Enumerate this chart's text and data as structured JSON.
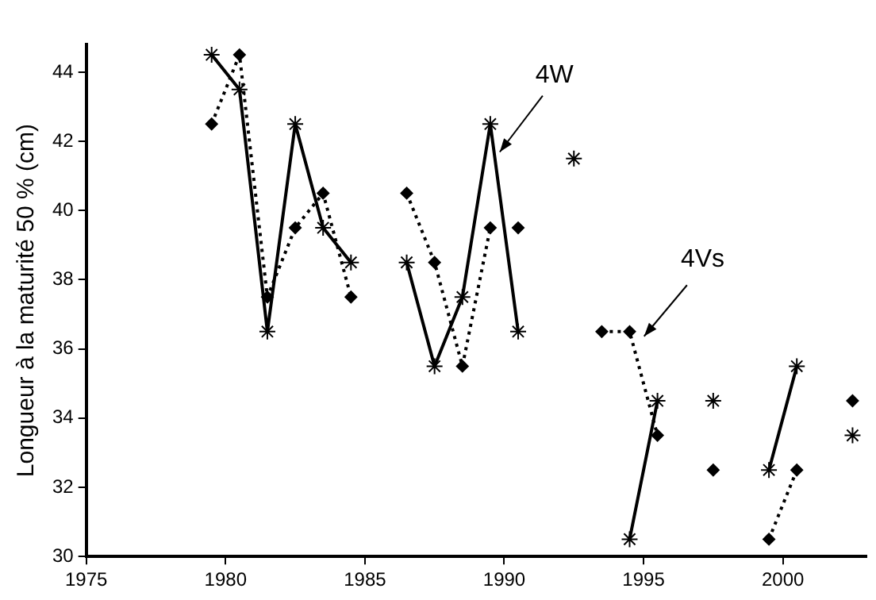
{
  "chart_data": {
    "type": "line",
    "ylabel": "Longueur à la maturité 50 % (cm)",
    "xlim": [
      1975,
      2003
    ],
    "xticks": [
      1975,
      1980,
      1985,
      1990,
      1995,
      2000
    ],
    "ylim": [
      30,
      44.8
    ],
    "yticks": [
      30,
      32,
      34,
      36,
      38,
      40,
      42,
      44
    ],
    "grid": false,
    "legend": false,
    "series": [
      {
        "name": "4W",
        "color": "#000000",
        "marker": "cross",
        "line_style": "solid",
        "x": [
          1979.5,
          1980.5,
          1981.5,
          1982.5,
          1983.5,
          1984.5,
          1985.5,
          1986.5,
          1987.5,
          1988.5,
          1989.5,
          1990.5,
          1991.5,
          1992.5,
          1993.5,
          1994.5,
          1995.5,
          1996.5,
          1997.5,
          1998.5,
          1999.5,
          2000.5,
          2001.5,
          2002.5
        ],
        "values": [
          44.5,
          43.5,
          36.5,
          42.5,
          39.5,
          38.5,
          null,
          38.5,
          35.5,
          37.5,
          42.5,
          36.5,
          null,
          41.5,
          null,
          30.5,
          34.5,
          null,
          34.5,
          null,
          32.5,
          35.5,
          null,
          33.5
        ]
      },
      {
        "name": "4Vs",
        "color": "#000000",
        "marker": "diamond",
        "line_style": "dotted",
        "x": [
          1979.5,
          1980.5,
          1981.5,
          1982.5,
          1983.5,
          1984.5,
          1985.5,
          1986.5,
          1987.5,
          1988.5,
          1989.5,
          1990,
          1990.5,
          1991.5,
          1993.5,
          1994.5,
          1995.5,
          1996.5,
          1997.5,
          1998.5,
          1999.5,
          2000.5,
          2001.5,
          2002.5
        ],
        "values": [
          42.5,
          44.5,
          37.5,
          39.5,
          40.5,
          37.5,
          null,
          40.5,
          38.5,
          35.5,
          39.5,
          null,
          39.5,
          null,
          36.5,
          36.5,
          33.5,
          null,
          32.5,
          null,
          30.5,
          32.5,
          null,
          34.5
        ]
      }
    ]
  }
}
